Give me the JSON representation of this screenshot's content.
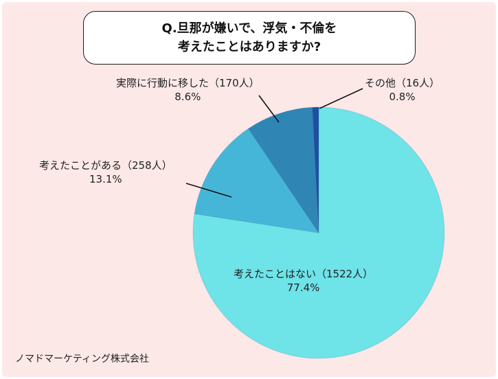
{
  "title_lines": [
    "Q.旦那が嫌いで、浮気・不倫を",
    "考えたことはありますか?"
  ],
  "credit": "ノマドマーケティング株式会社",
  "chart_data": {
    "type": "pie",
    "title": "Q.旦那が嫌いで、浮気・不倫を 考えたことはありますか?",
    "slices": [
      {
        "label": "考えたことはない（1522人）",
        "value": 1522,
        "percent": "77.4%",
        "color": "#6ee3e8"
      },
      {
        "label": "考えたことがある（258人）",
        "value": 258,
        "percent": "13.1%",
        "color": "#46b6d8"
      },
      {
        "label": "実際に行動に移した（170人）",
        "value": 170,
        "percent": "8.6%",
        "color": "#2f86b4"
      },
      {
        "label": "その他（16人）",
        "value": 16,
        "percent": "0.8%",
        "color": "#1f4f9f"
      }
    ],
    "legend_position": "outside-labels",
    "grid": false
  }
}
